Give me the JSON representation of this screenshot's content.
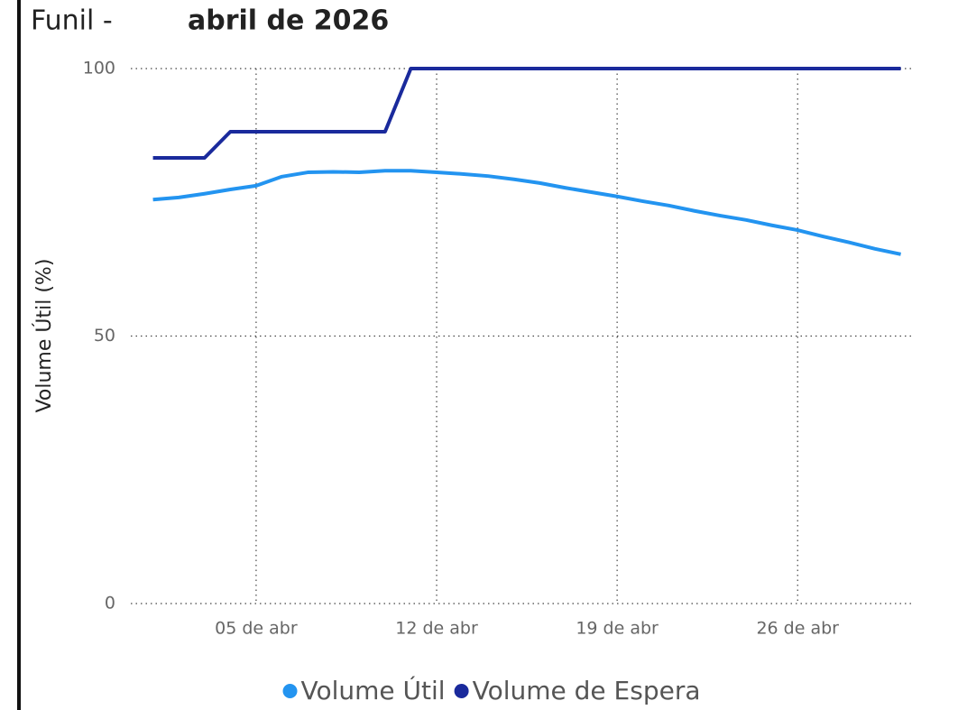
{
  "chart_data": {
    "type": "line",
    "title": "Funil -",
    "subtitle": "abril de 2026",
    "ylabel": "Volume Útil (%)",
    "x": [
      1,
      2,
      3,
      4,
      5,
      6,
      7,
      8,
      9,
      10,
      11,
      12,
      13,
      14,
      15,
      16,
      17,
      18,
      19,
      20,
      21,
      22,
      23,
      24,
      25,
      26,
      27,
      28,
      29,
      30
    ],
    "xlim": [
      0.14,
      30.4
    ],
    "xticks": [
      {
        "value": 5,
        "label": "05 de abr"
      },
      {
        "value": 12,
        "label": "12 de abr"
      },
      {
        "value": 19,
        "label": "19 de abr"
      },
      {
        "value": 26,
        "label": "26 de abr"
      }
    ],
    "ylim": [
      0,
      100
    ],
    "yticks": [
      0,
      50,
      100
    ],
    "grid": true,
    "series": [
      {
        "name": "Volume Útil",
        "color": "#2394f0",
        "values": [
          75.5,
          75.9,
          76.6,
          77.4,
          78.1,
          79.8,
          80.6,
          80.7,
          80.6,
          80.9,
          80.9,
          80.6,
          80.3,
          79.9,
          79.3,
          78.6,
          77.7,
          76.9,
          76.1,
          75.2,
          74.4,
          73.4,
          72.5,
          71.7,
          70.7,
          69.8,
          68.6,
          67.5,
          66.3,
          65.3
        ]
      },
      {
        "name": "Volume de Espera",
        "color": "#1a2a9c",
        "values": [
          83.3,
          83.3,
          83.3,
          88.2,
          88.2,
          88.2,
          88.2,
          88.2,
          88.2,
          88.2,
          100,
          100,
          100,
          100,
          100,
          100,
          100,
          100,
          100,
          100,
          100,
          100,
          100,
          100,
          100,
          100,
          100,
          100,
          100,
          100
        ]
      }
    ]
  }
}
